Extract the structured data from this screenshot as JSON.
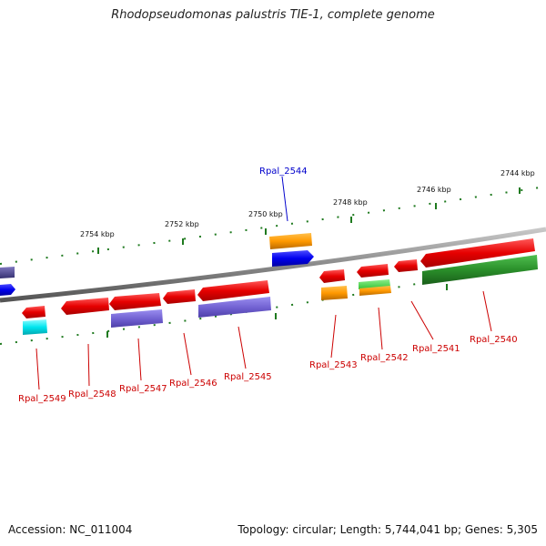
{
  "title": "Rhodopseudomonas palustris TIE-1, complete genome",
  "footer": {
    "accession": "Accession: NC_011004",
    "summary": "Topology: circular; Length: 5,744,041 bp; Genes: 5,305"
  },
  "colors": {
    "backbone": "#8a8a8a",
    "tick": "#1f7a1f",
    "label_default": "#cc0000",
    "label_highlight": "#0000cc"
  },
  "scale_labels": [
    "2754 kbp",
    "2752 kbp",
    "2750 kbp",
    "2748 kbp",
    "2746 kbp",
    "2744 kbp"
  ],
  "gene_labels": [
    {
      "id": "Rpal_2544",
      "highlight": true
    },
    {
      "id": "Rpal_2549",
      "highlight": false
    },
    {
      "id": "Rpal_2548",
      "highlight": false
    },
    {
      "id": "Rpal_2547",
      "highlight": false
    },
    {
      "id": "Rpal_2546",
      "highlight": false
    },
    {
      "id": "Rpal_2545",
      "highlight": false
    },
    {
      "id": "Rpal_2543",
      "highlight": false
    },
    {
      "id": "Rpal_2542",
      "highlight": false
    },
    {
      "id": "Rpal_2541",
      "highlight": false
    },
    {
      "id": "Rpal_2540",
      "highlight": false
    }
  ]
}
